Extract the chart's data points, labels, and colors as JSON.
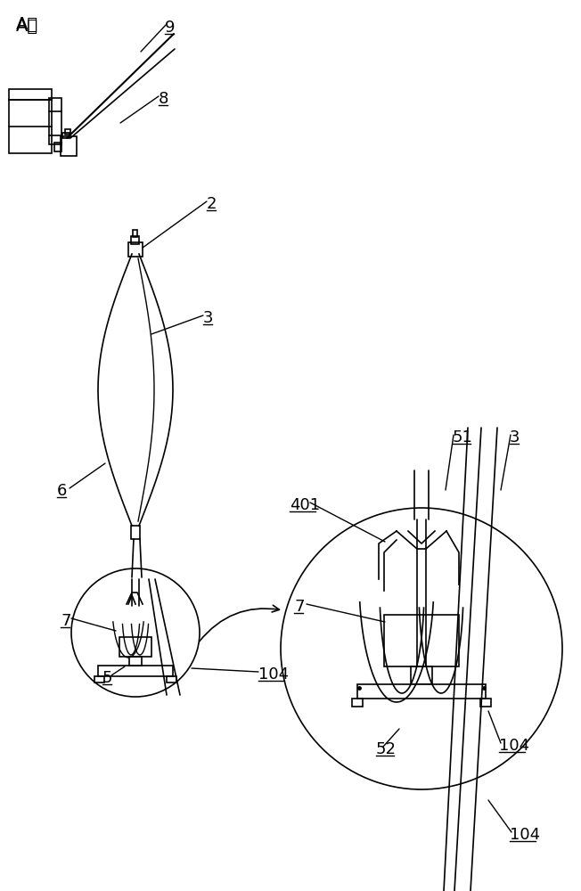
{
  "bg_color": "#ffffff",
  "line_color": "#000000",
  "fig_width": 6.52,
  "fig_height": 10.0,
  "dpi": 100
}
